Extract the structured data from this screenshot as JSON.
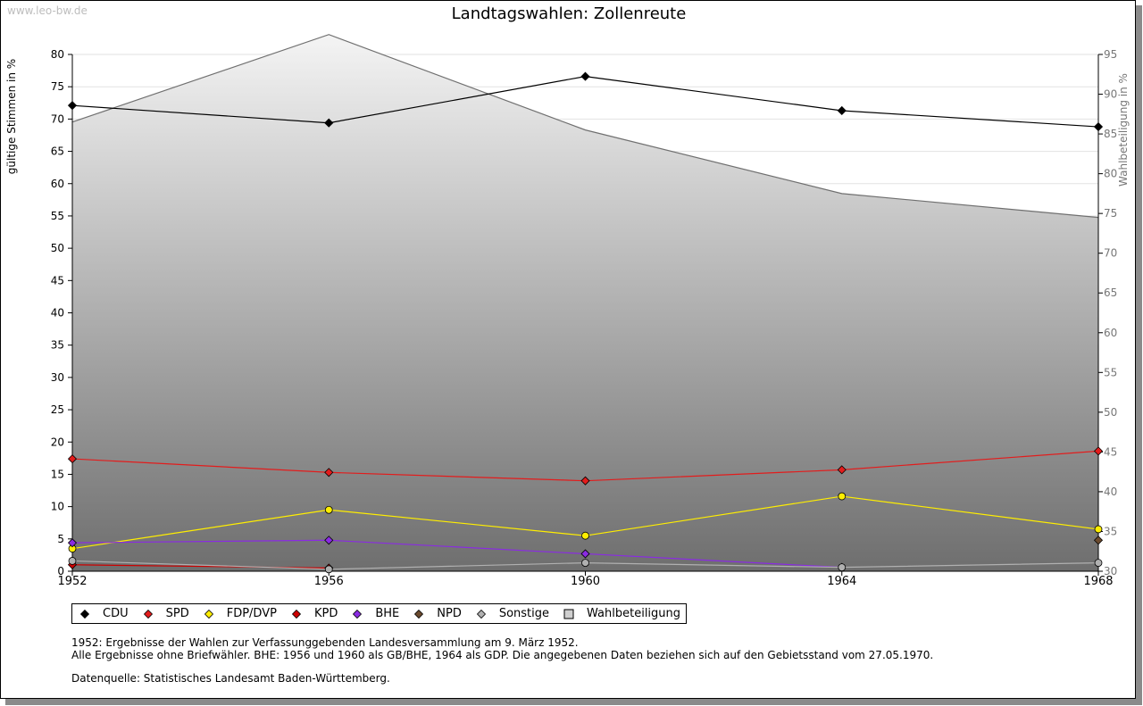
{
  "watermark": "www.leo-bw.de",
  "notes": {
    "line1": "1952: Ergebnisse der Wahlen zur Verfassunggebenden Landesversammlung am 9. März 1952.",
    "line2": "Alle Ergebnisse ohne Briefwähler. BHE: 1956 und 1960 als GB/BHE, 1964 als GDP. Die angegebenen Daten beziehen sich auf den Gebietsstand vom 27.05.1970.",
    "source": "Datenquelle: Statistisches Landesamt Baden-Württemberg."
  },
  "chart_data": {
    "type": "line",
    "title": "Landtagswahlen: Zollenreute",
    "ylabel": "gültige Stimmen in %",
    "y2label": "Wahlbeteiligung in %",
    "ylim": [
      0,
      80
    ],
    "y2lim": [
      30,
      95
    ],
    "yticks": [
      0,
      5,
      10,
      15,
      20,
      25,
      30,
      35,
      40,
      45,
      50,
      55,
      60,
      65,
      70,
      75,
      80
    ],
    "y2ticks": [
      30,
      35,
      40,
      45,
      50,
      55,
      60,
      65,
      70,
      75,
      80,
      85,
      90,
      95
    ],
    "categories": [
      "1952",
      "1956",
      "1960",
      "1964",
      "1968"
    ],
    "grid": true,
    "legend_position": "bottom",
    "series": [
      {
        "name": "CDU",
        "color": "#000000",
        "values": [
          72.1,
          69.4,
          76.6,
          71.3,
          68.8
        ]
      },
      {
        "name": "SPD",
        "color": "#e31c1c",
        "values": [
          17.4,
          15.3,
          14.0,
          15.7,
          18.6
        ]
      },
      {
        "name": "FDP/DVP",
        "color": "#ffee00",
        "values": [
          3.5,
          9.5,
          5.5,
          11.6,
          6.5
        ]
      },
      {
        "name": "KPD",
        "color": "#cc0000",
        "values": [
          1.0,
          0.5,
          null,
          null,
          null
        ]
      },
      {
        "name": "BHE",
        "color": "#8a2be2",
        "values": [
          4.4,
          4.8,
          2.7,
          0.6,
          null
        ]
      },
      {
        "name": "NPD",
        "color": "#6b4a2e",
        "values": [
          null,
          null,
          null,
          null,
          4.8
        ]
      },
      {
        "name": "Sonstige",
        "color": "#b0b0b0",
        "values": [
          1.6,
          0.3,
          1.3,
          0.6,
          1.3
        ]
      }
    ],
    "turnout": {
      "name": "Wahlbeteiligung",
      "axis": "right",
      "values": [
        86.5,
        97.5,
        85.5,
        77.5,
        74.5
      ]
    }
  }
}
